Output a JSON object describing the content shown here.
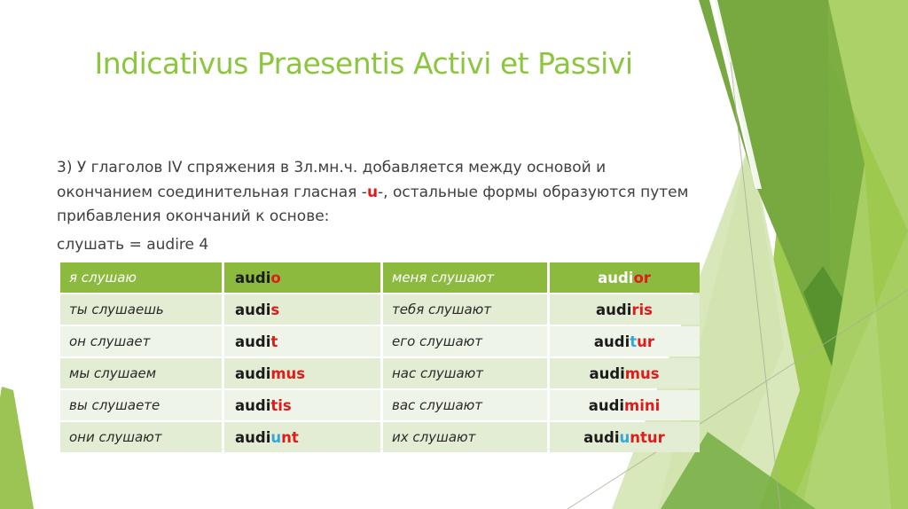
{
  "title": "Indicativus Praesentis Activi et Passivi",
  "paragraph": {
    "lines": [
      [
        {
          "text": "3) У глаголов IV спряжения в 3л.мн.ч. добавляется между основой и"
        }
      ],
      [
        {
          "text": "окончанием соединительная гласная -"
        },
        {
          "text": "u",
          "color": "red",
          "bold": true
        },
        {
          "text": "-, остальные формы образуются путем"
        }
      ],
      [
        {
          "text": "прибавления окончаний к основе:"
        }
      ]
    ],
    "stem_line": "слушать = audire 4"
  },
  "table": {
    "header": {
      "cells": [
        {
          "kind": "ru",
          "text": "я слушаю"
        },
        {
          "kind": "la",
          "segments": [
            {
              "text": "audi",
              "color": "dark"
            },
            {
              "text": "o",
              "color": "red"
            }
          ]
        },
        {
          "kind": "ru",
          "text": "меня слушают"
        },
        {
          "kind": "la",
          "segments": [
            {
              "text": "audi",
              "color": "white"
            },
            {
              "text": "or",
              "color": "red"
            }
          ]
        }
      ]
    },
    "rows": [
      {
        "cells": [
          {
            "kind": "ru",
            "text": "ты слушаешь"
          },
          {
            "kind": "la",
            "segments": [
              {
                "text": "audi",
                "color": "dark"
              },
              {
                "text": "s",
                "color": "red"
              }
            ]
          },
          {
            "kind": "ru",
            "text": "тебя слушают"
          },
          {
            "kind": "la",
            "segments": [
              {
                "text": "audi",
                "color": "dark"
              },
              {
                "text": "ris",
                "color": "red"
              }
            ]
          }
        ]
      },
      {
        "cells": [
          {
            "kind": "ru",
            "text": "он слушает"
          },
          {
            "kind": "la",
            "segments": [
              {
                "text": "audi",
                "color": "dark"
              },
              {
                "text": "t",
                "color": "red"
              }
            ]
          },
          {
            "kind": "ru",
            "text": "его слушают"
          },
          {
            "kind": "la",
            "segments": [
              {
                "text": "audi",
                "color": "dark"
              },
              {
                "text": "t",
                "color": "blue"
              },
              {
                "text": "ur",
                "color": "red"
              }
            ]
          }
        ]
      },
      {
        "cells": [
          {
            "kind": "ru",
            "text": "мы слушаем"
          },
          {
            "kind": "la",
            "segments": [
              {
                "text": "audi",
                "color": "dark"
              },
              {
                "text": "mus",
                "color": "red"
              }
            ]
          },
          {
            "kind": "ru",
            "text": "нас слушают"
          },
          {
            "kind": "la",
            "segments": [
              {
                "text": "audi",
                "color": "dark"
              },
              {
                "text": "mus",
                "color": "red"
              }
            ]
          }
        ]
      },
      {
        "cells": [
          {
            "kind": "ru",
            "text": "вы слушаете"
          },
          {
            "kind": "la",
            "segments": [
              {
                "text": "audi",
                "color": "dark"
              },
              {
                "text": "tis",
                "color": "red"
              }
            ]
          },
          {
            "kind": "ru",
            "text": "вас слушают"
          },
          {
            "kind": "la",
            "segments": [
              {
                "text": "audi",
                "color": "dark"
              },
              {
                "text": "mini",
                "color": "red"
              }
            ]
          }
        ]
      },
      {
        "cells": [
          {
            "kind": "ru",
            "text": "они слушают"
          },
          {
            "kind": "la",
            "segments": [
              {
                "text": "audi",
                "color": "dark"
              },
              {
                "text": "u",
                "color": "blue"
              },
              {
                "text": "nt",
                "color": "red"
              }
            ]
          },
          {
            "kind": "ru",
            "text": "их слушают"
          },
          {
            "kind": "la",
            "segments": [
              {
                "text": "audi",
                "color": "dark"
              },
              {
                "text": "u",
                "color": "blue"
              },
              {
                "text": "ntur",
                "color": "red"
              }
            ]
          }
        ]
      }
    ]
  },
  "colors": {
    "dark": "#1b1b1b",
    "red": "#e11b1b",
    "blue": "#2fa8dc",
    "white": "#ffffff",
    "title_green": "#8cc63e",
    "header_bg": "#8cba3f",
    "row_band_a": "#e3edd3",
    "row_band_b": "#eff4e8",
    "body_text": "#3f3f3f"
  }
}
